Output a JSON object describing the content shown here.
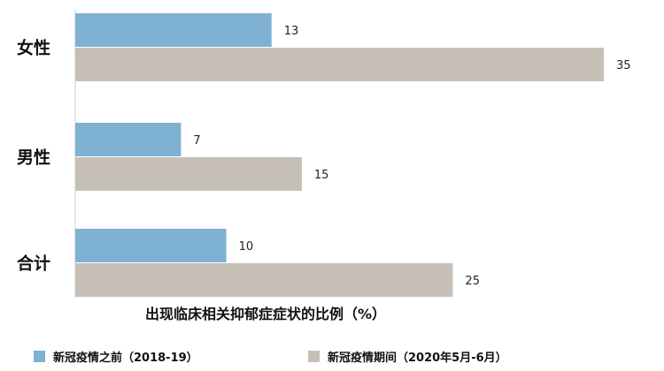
{
  "chart_data": {
    "type": "bar",
    "orientation": "horizontal",
    "categories": [
      "女性",
      "男性",
      "合计"
    ],
    "series": [
      {
        "name": "新冠疫情之前（2018-19）",
        "values": [
          13,
          7,
          10
        ],
        "color": "#7eb1d2"
      },
      {
        "name": "新冠疫情期间（2020年5月-6月）",
        "values": [
          35,
          15,
          25
        ],
        "color": "#c6bfb5"
      }
    ],
    "xlabel": "出现临床相关抑郁症症状的比例（%）",
    "xlim": [
      0,
      35
    ],
    "grid": false,
    "legend_position": "bottom"
  }
}
